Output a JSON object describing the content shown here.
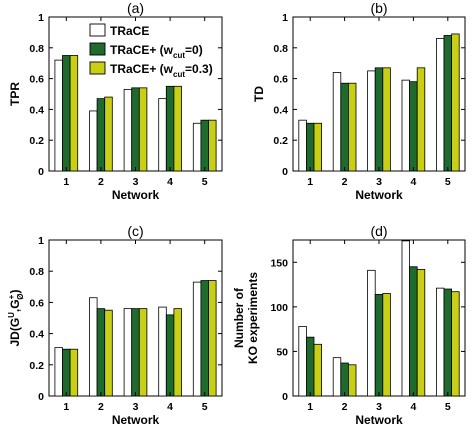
{
  "legend": {
    "items": [
      {
        "main": "TRaCE",
        "sub": "",
        "tail": ""
      },
      {
        "main": "TRaCE+ (w",
        "sub": "cut",
        "tail": "=0)"
      },
      {
        "main": "TRaCE+ (w",
        "sub": "cut",
        "tail": "=0.3)"
      }
    ],
    "placement": "top-left of panel (a)"
  },
  "colors": {
    "series": [
      "#ffffff",
      "#1f6b2e",
      "#c9cf14"
    ],
    "bar_stroke": "#000000",
    "axis": "#000000"
  },
  "chart_data": [
    {
      "type": "bar",
      "title": "(a)",
      "xlabel": "Network",
      "ylabel": "TPR",
      "ylabel_parts": {
        "main": "TPR",
        "sup": "",
        "sub": ""
      },
      "categories": [
        "1",
        "2",
        "3",
        "4",
        "5"
      ],
      "ylim": [
        0,
        1
      ],
      "yticks": [
        0,
        0.2,
        0.4,
        0.6,
        0.8,
        1
      ],
      "ytick_labels": [
        "0",
        "0.2",
        "0.4",
        "0.6",
        "0.8",
        "1"
      ],
      "grid": false,
      "series": [
        {
          "name": "TRaCE",
          "values": [
            0.72,
            0.39,
            0.53,
            0.47,
            0.31
          ]
        },
        {
          "name": "TRaCE+ (wcut=0)",
          "values": [
            0.75,
            0.47,
            0.54,
            0.55,
            0.33
          ]
        },
        {
          "name": "TRaCE+ (wcut=0.3)",
          "values": [
            0.75,
            0.48,
            0.54,
            0.55,
            0.33
          ]
        }
      ]
    },
    {
      "type": "bar",
      "title": "(b)",
      "xlabel": "Network",
      "ylabel": "TD",
      "ylabel_parts": {
        "main": "TD",
        "sup": "",
        "sub": ""
      },
      "categories": [
        "1",
        "2",
        "3",
        "4",
        "5"
      ],
      "ylim": [
        0,
        1
      ],
      "yticks": [
        0,
        0.2,
        0.4,
        0.6,
        0.8,
        1
      ],
      "ytick_labels": [
        "0",
        "0.2",
        "0.4",
        "0.6",
        "0.8",
        "1"
      ],
      "grid": false,
      "series": [
        {
          "name": "TRaCE",
          "values": [
            0.33,
            0.64,
            0.65,
            0.59,
            0.86
          ]
        },
        {
          "name": "TRaCE+ (wcut=0)",
          "values": [
            0.31,
            0.57,
            0.67,
            0.58,
            0.88
          ]
        },
        {
          "name": "TRaCE+ (wcut=0.3)",
          "values": [
            0.31,
            0.57,
            0.67,
            0.67,
            0.89
          ]
        }
      ]
    },
    {
      "type": "bar",
      "title": "(c)",
      "xlabel": "Network",
      "ylabel": "JD(G^U,G^+_Ø)",
      "ylabel_parts": {
        "main": "JD(G",
        "sup": "U",
        "mid": ",G",
        "sup2": "+",
        "sub": "Ø",
        "tail": ")"
      },
      "categories": [
        "1",
        "2",
        "3",
        "4",
        "5"
      ],
      "ylim": [
        0,
        1
      ],
      "yticks": [
        0,
        0.2,
        0.4,
        0.6,
        0.8,
        1
      ],
      "ytick_labels": [
        "0",
        "0.2",
        "0.4",
        "0.6",
        "0.8",
        "1"
      ],
      "grid": false,
      "series": [
        {
          "name": "TRaCE",
          "values": [
            0.31,
            0.63,
            0.56,
            0.57,
            0.73
          ]
        },
        {
          "name": "TRaCE+ (wcut=0)",
          "values": [
            0.3,
            0.56,
            0.56,
            0.52,
            0.74
          ]
        },
        {
          "name": "TRaCE+ (wcut=0.3)",
          "values": [
            0.3,
            0.55,
            0.56,
            0.56,
            0.74
          ]
        }
      ]
    },
    {
      "type": "bar",
      "title": "(d)",
      "xlabel": "Network",
      "ylabel": "Number of KO experiments",
      "ylabel_lines": [
        "Number of",
        "KO experiments"
      ],
      "categories": [
        "1",
        "2",
        "3",
        "4",
        "5"
      ],
      "ylim": [
        0,
        175
      ],
      "yticks": [
        0,
        50,
        100,
        150
      ],
      "ytick_labels": [
        "0",
        "50",
        "100",
        "150"
      ],
      "grid": false,
      "series": [
        {
          "name": "TRaCE",
          "values": [
            78,
            43,
            141,
            174,
            121
          ]
        },
        {
          "name": "TRaCE+ (wcut=0)",
          "values": [
            66,
            37,
            114,
            145,
            120
          ]
        },
        {
          "name": "TRaCE+ (wcut=0.3)",
          "values": [
            58,
            35,
            115,
            142,
            117
          ]
        }
      ]
    }
  ]
}
